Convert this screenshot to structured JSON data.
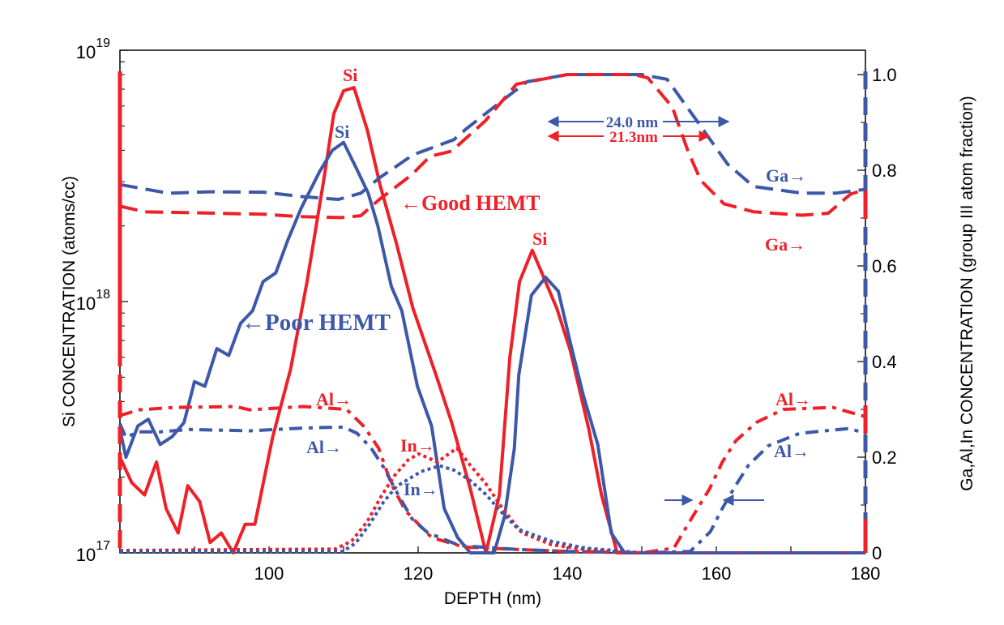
{
  "chart_data": {
    "type": "line",
    "xlabel": "DEPTH (nm)",
    "ylabel_left": "Si CONCENTRATION (atoms/cc)",
    "ylabel_right": "Ga,Al,In CONCENTRATION (group III atom fraction)",
    "xlim": [
      80,
      180
    ],
    "ylim_left": [
      1e+17,
      1e+19
    ],
    "yscale_left": "log",
    "ylim_right": [
      0,
      1.0
    ],
    "x_ticks": [
      "100",
      "120",
      "140",
      "160",
      "180"
    ],
    "x_tick_values": [
      100,
      120,
      140,
      160,
      180
    ],
    "y_left_ticks": [
      {
        "base": "10",
        "exp": "19",
        "value": 1e+19
      },
      {
        "base": "10",
        "exp": "18",
        "value": 1e+18
      },
      {
        "base": "10",
        "exp": "17",
        "value": 1e+17
      }
    ],
    "y_right_ticks": [
      "0",
      "0.2",
      "0.4",
      "0.6",
      "0.8",
      "1.0"
    ],
    "y_right_tick_values": [
      0,
      0.2,
      0.4,
      0.6,
      0.8,
      1.0
    ],
    "grid": false,
    "colors": {
      "good": "#ee2028",
      "poor": "#3d58a8"
    },
    "series": [
      {
        "element": "Si",
        "sample": "Good HEMT",
        "axis": "left",
        "style": "solid",
        "color": "#ee2028",
        "x": [
          80,
          81.6,
          83.3,
          84.9,
          86.2,
          87.8,
          89.1,
          90.7,
          92.1,
          93.6,
          95.2,
          96.8,
          98.1,
          100.5,
          102.9,
          105.1,
          107.3,
          108.7,
          110,
          111.4,
          113.2,
          114.9,
          117.1,
          119.3,
          122.5,
          124.5,
          127,
          129.1,
          130.9,
          132.3,
          133.6,
          135.3,
          136.6,
          138.6,
          140.4,
          142.9,
          144.6,
          146.7,
          180
        ],
        "y": [
          2.4e+17,
          1.9e+17,
          1.7e+17,
          2.3e+17,
          1.5e+17,
          1.2e+17,
          1.85e+17,
          1.6e+17,
          1.1e+17,
          1.2e+17,
          1e+17,
          1.3e+17,
          1.3e+17,
          2.9e+17,
          5.4e+17,
          1.2e+18,
          3e+18,
          5.6e+18,
          6.9e+18,
          7.1e+18,
          4.8e+18,
          2.9e+18,
          1.7e+18,
          9.4e+17,
          5e+17,
          3.3e+17,
          1.8e+17,
          1e+17,
          1.7e+17,
          6e+17,
          1.2e+18,
          1.6e+18,
          1.3e+18,
          9.4e+17,
          6.4e+17,
          3.1e+17,
          1.7e+17,
          1e+17,
          1e+17
        ]
      },
      {
        "element": "Si",
        "sample": "Poor HEMT",
        "axis": "left",
        "style": "solid",
        "color": "#3d58a8",
        "x": [
          80,
          80.8,
          82.4,
          83.8,
          85.4,
          87,
          88.6,
          90,
          91.4,
          93,
          94.6,
          96.2,
          97.8,
          99.2,
          100.9,
          102.5,
          104.3,
          106.8,
          108.5,
          110,
          111.7,
          113.3,
          114.6,
          116.4,
          117.8,
          119.9,
          121.8,
          123.5,
          125.3,
          127,
          130.2,
          131.6,
          132.9,
          133.5,
          135.2,
          137.1,
          138.8,
          140.5,
          142.2,
          144.1,
          145.9,
          147.7,
          180
        ],
        "y": [
          3.1e+17,
          2.4e+17,
          3.2e+17,
          3.4e+17,
          2.7e+17,
          2.9e+17,
          3.3e+17,
          4.8e+17,
          4.6e+17,
          6.5e+17,
          6.1e+17,
          8.2e+17,
          9.2e+17,
          1.2e+18,
          1.3e+18,
          1.75e+18,
          2.35e+18,
          3.3e+18,
          4e+18,
          4.3e+18,
          3.4e+18,
          2.7e+18,
          2e+18,
          1.15e+18,
          9.2e+17,
          4.6e+17,
          3.2e+17,
          1.5e+17,
          1.15e+17,
          1e+17,
          1e+17,
          1.4e+17,
          2.6e+17,
          5.1e+17,
          1.06e+18,
          1.25e+18,
          1.1e+18,
          6.7e+17,
          4.2e+17,
          2.7e+17,
          1.2e+17,
          1e+17,
          1e+17
        ]
      },
      {
        "element": "Ga",
        "sample": "Poor HEMT",
        "axis": "right",
        "style": "dashed",
        "color": "#3d58a8",
        "x": [
          80,
          86.5,
          92,
          99.3,
          104.3,
          109.3,
          112.3,
          114.8,
          119.3,
          124.8,
          126.4,
          131.3,
          134.6,
          140,
          150,
          153.4,
          157.4,
          161.5,
          165,
          171.5,
          176,
          180
        ],
        "y": [
          0.77,
          0.752,
          0.755,
          0.754,
          0.745,
          0.739,
          0.752,
          0.784,
          0.832,
          0.864,
          0.886,
          0.946,
          0.985,
          1.0,
          1.0,
          0.99,
          0.903,
          0.813,
          0.766,
          0.752,
          0.752,
          0.76
        ]
      },
      {
        "element": "Ga",
        "sample": "Good HEMT",
        "axis": "right",
        "style": "dashed",
        "color": "#ee2028",
        "x": [
          80,
          83.3,
          90.1,
          99.3,
          104,
          109.7,
          112.3,
          114.8,
          119.1,
          121.6,
          124.5,
          129,
          133.2,
          140,
          149,
          150.8,
          154.1,
          156.2,
          157.9,
          161,
          165,
          171.5,
          175,
          178,
          180
        ],
        "y": [
          0.725,
          0.713,
          0.711,
          0.708,
          0.703,
          0.701,
          0.705,
          0.739,
          0.79,
          0.829,
          0.84,
          0.903,
          0.98,
          1.0,
          1.0,
          0.993,
          0.932,
          0.84,
          0.779,
          0.73,
          0.713,
          0.706,
          0.71,
          0.75,
          0.76
        ]
      },
      {
        "element": "Al",
        "sample": "Good HEMT",
        "axis": "right",
        "style": "dashdot",
        "color": "#ee2028",
        "x": [
          80,
          82.5,
          87.2,
          95.5,
          97.4,
          104.6,
          110.4,
          112.8,
          114.7,
          116.4,
          118.3,
          121.8,
          126.2,
          133.5,
          140,
          150,
          154.3,
          156.4,
          159.1,
          160.8,
          162.6,
          165.4,
          169,
          175.6,
          180
        ],
        "y": [
          0.287,
          0.299,
          0.304,
          0.306,
          0.299,
          0.306,
          0.3,
          0.263,
          0.219,
          0.144,
          0.088,
          0.032,
          0.012,
          0.007,
          0.003,
          0,
          0.01,
          0.065,
          0.134,
          0.19,
          0.234,
          0.273,
          0.3,
          0.304,
          0.285
        ]
      },
      {
        "element": "Al",
        "sample": "Poor HEMT",
        "axis": "right",
        "style": "dashdot",
        "color": "#3d58a8",
        "x": [
          80,
          80.8,
          82.4,
          85.4,
          89.3,
          97.4,
          104.6,
          110,
          111.8,
          113.7,
          115.4,
          117.3,
          119.2,
          121.3,
          125.6,
          133.5,
          140,
          150,
          156.5,
          159.2,
          160.8,
          162.6,
          164.3,
          167,
          171.2,
          177.8,
          180
        ],
        "y": [
          0.27,
          0.241,
          0.253,
          0.253,
          0.258,
          0.255,
          0.261,
          0.263,
          0.25,
          0.219,
          0.178,
          0.122,
          0.071,
          0.042,
          0.015,
          0.007,
          0.003,
          0,
          0.003,
          0.044,
          0.093,
          0.141,
          0.183,
          0.224,
          0.25,
          0.26,
          0.25
        ]
      },
      {
        "element": "In",
        "sample": "Good HEMT",
        "axis": "right",
        "style": "dotted",
        "color": "#ee2028",
        "x": [
          80,
          108.9,
          111.1,
          113.2,
          115,
          116.8,
          118.7,
          120.1,
          122.6,
          125.2,
          126.9,
          129.1,
          131.3,
          133.9,
          137.9,
          142.4,
          150,
          180
        ],
        "y": [
          0.005,
          0.008,
          0.025,
          0.066,
          0.117,
          0.161,
          0.195,
          0.207,
          0.19,
          0.219,
          0.185,
          0.144,
          0.093,
          0.042,
          0.017,
          0.007,
          0,
          0
        ]
      },
      {
        "element": "In",
        "sample": "Poor HEMT",
        "axis": "right",
        "style": "dotted",
        "color": "#3d58a8",
        "x": [
          80,
          109.9,
          111.6,
          113.5,
          115.3,
          117.1,
          118.9,
          120.4,
          122.9,
          124.8,
          127,
          129.1,
          131.3,
          133.5,
          137.9,
          142.4,
          150,
          180
        ],
        "y": [
          0.003,
          0.003,
          0.02,
          0.06,
          0.105,
          0.139,
          0.156,
          0.17,
          0.182,
          0.173,
          0.151,
          0.122,
          0.083,
          0.049,
          0.024,
          0.01,
          0,
          0
        ]
      }
    ],
    "annotations": {
      "si_good_peak1": "Si",
      "si_poor_peak1": "Si",
      "si_good_peak2": "Si",
      "good_hemt": "←Good HEMT",
      "poor_hemt": "←Poor HEMT",
      "al_good_left": "Al→",
      "al_poor_left": "Al→",
      "in_good": "In→",
      "in_poor": "In→",
      "width_poor": "24.0 nm",
      "width_good": "21.3nm",
      "ga_poor": "Ga→",
      "ga_good": "Ga→",
      "al_good_right": "Al→",
      "al_poor_right": "Al→"
    }
  }
}
